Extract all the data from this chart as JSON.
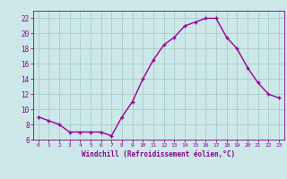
{
  "x": [
    0,
    1,
    2,
    3,
    4,
    5,
    6,
    7,
    8,
    9,
    10,
    11,
    12,
    13,
    14,
    15,
    16,
    17,
    18,
    19,
    20,
    21,
    22,
    23
  ],
  "y": [
    9,
    8.5,
    8,
    7,
    7,
    7,
    7,
    6.5,
    9,
    11,
    14,
    16.5,
    18.5,
    19.5,
    21,
    21.5,
    22,
    22,
    19.5,
    18,
    15.5,
    13.5,
    12,
    11.5
  ],
  "line_color": "#990099",
  "marker": "+",
  "bg_color": "#cce8e8",
  "grid_color": "#aacccc",
  "xlabel": "Windchill (Refroidissement éolien,°C)",
  "xlabel_color": "#880088",
  "tick_color": "#880088",
  "ylim": [
    6,
    23
  ],
  "xlim": [
    -0.5,
    23.5
  ],
  "yticks": [
    6,
    8,
    10,
    12,
    14,
    16,
    18,
    20,
    22
  ],
  "xticks": [
    0,
    1,
    2,
    3,
    4,
    5,
    6,
    7,
    8,
    9,
    10,
    11,
    12,
    13,
    14,
    15,
    16,
    17,
    18,
    19,
    20,
    21,
    22,
    23
  ]
}
